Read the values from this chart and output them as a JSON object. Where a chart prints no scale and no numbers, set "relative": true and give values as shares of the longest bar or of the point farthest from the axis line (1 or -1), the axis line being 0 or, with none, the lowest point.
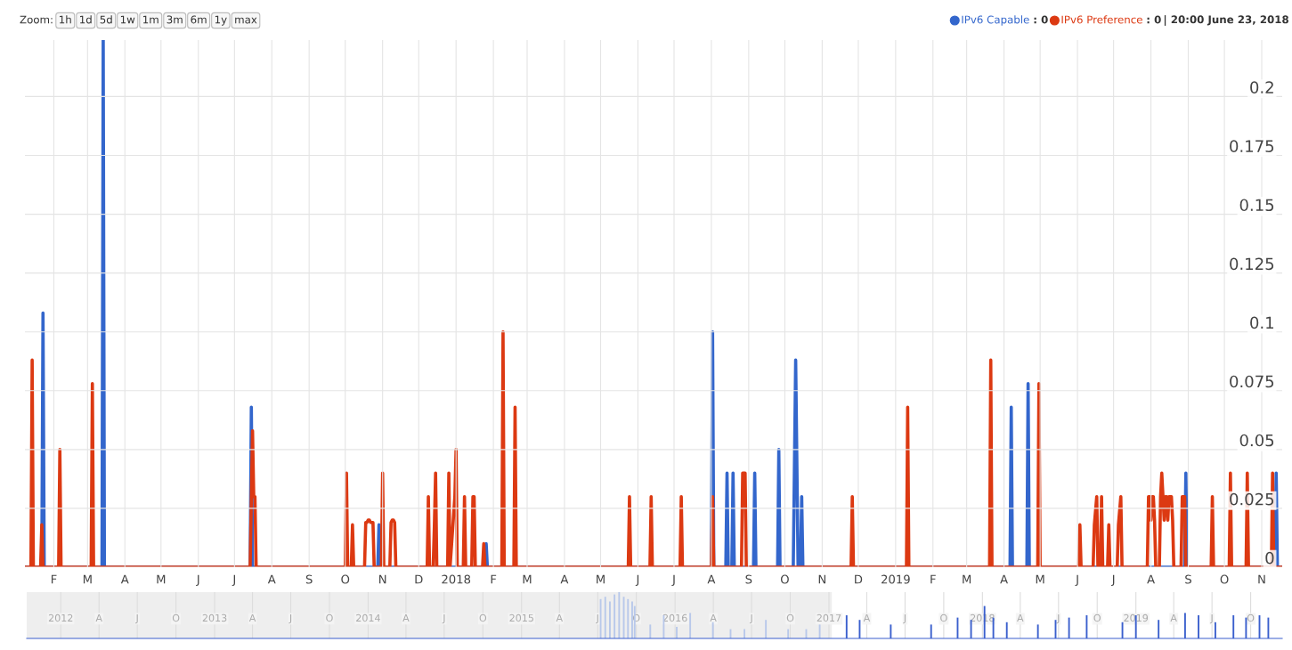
{
  "chart_data": [
    {
      "type": "line",
      "xlim": [
        "2017-01-08",
        "2019-11-18"
      ],
      "ylim": [
        0,
        0.224
      ],
      "yticks": [
        0,
        0.025,
        0.05,
        0.075,
        0.1,
        0.125,
        0.15,
        0.175,
        0.2
      ],
      "grid": true,
      "legend": "top right",
      "marker": "none",
      "line_style": "solid",
      "xticks": [
        {
          "value": "2017-02-01",
          "label": "F"
        },
        {
          "value": "2017-03-01",
          "label": "M"
        },
        {
          "value": "2017-04-01",
          "label": "A"
        },
        {
          "value": "2017-05-01",
          "label": "M"
        },
        {
          "value": "2017-06-01",
          "label": "J"
        },
        {
          "value": "2017-07-01",
          "label": "J"
        },
        {
          "value": "2017-08-01",
          "label": "A"
        },
        {
          "value": "2017-09-01",
          "label": "S"
        },
        {
          "value": "2017-10-01",
          "label": "O"
        },
        {
          "value": "2017-11-01",
          "label": "N"
        },
        {
          "value": "2017-12-01",
          "label": "D"
        },
        {
          "value": "2018-01-01",
          "label": "2018"
        },
        {
          "value": "2018-02-01",
          "label": "F"
        },
        {
          "value": "2018-03-01",
          "label": "M"
        },
        {
          "value": "2018-04-01",
          "label": "A"
        },
        {
          "value": "2018-05-01",
          "label": "M"
        },
        {
          "value": "2018-06-01",
          "label": "J"
        },
        {
          "value": "2018-07-01",
          "label": "J"
        },
        {
          "value": "2018-08-01",
          "label": "A"
        },
        {
          "value": "2018-09-01",
          "label": "S"
        },
        {
          "value": "2018-10-01",
          "label": "O"
        },
        {
          "value": "2018-11-01",
          "label": "N"
        },
        {
          "value": "2018-12-01",
          "label": "D"
        },
        {
          "value": "2019-01-01",
          "label": "2019"
        },
        {
          "value": "2019-02-01",
          "label": "F"
        },
        {
          "value": "2019-03-01",
          "label": "M"
        },
        {
          "value": "2019-04-01",
          "label": "A"
        },
        {
          "value": "2019-05-01",
          "label": "M"
        },
        {
          "value": "2019-06-01",
          "label": "J"
        },
        {
          "value": "2019-07-01",
          "label": "J"
        },
        {
          "value": "2019-08-01",
          "label": "A"
        },
        {
          "value": "2019-09-01",
          "label": "S"
        },
        {
          "value": "2019-10-01",
          "label": "O"
        },
        {
          "value": "2019-11-01",
          "label": "N"
        }
      ],
      "annotations": [
        "Zoom:",
        "1h",
        "1d",
        "5d",
        "1w",
        "1m",
        "3m",
        "6m",
        "1y",
        "max",
        ": 0",
        ": 0",
        "| 20:00 June 23, 2018"
      ],
      "series": [
        {
          "name": "IPv6 Capable",
          "color": "#3366cc",
          "x": [
            "2017-01-08",
            "2017-01-22",
            "2017-01-23",
            "2017-01-24",
            "2017-03-13",
            "2017-03-14",
            "2017-03-15",
            "2017-07-14",
            "2017-07-15",
            "2017-07-16",
            "2017-10-28",
            "2017-10-29",
            "2017-10-30",
            "2018-01-25",
            "2018-01-26",
            "2018-01-27",
            "2018-08-01",
            "2018-08-02",
            "2018-08-03",
            "2018-08-13",
            "2018-08-14",
            "2018-08-15",
            "2018-08-18",
            "2018-08-19",
            "2018-08-20",
            "2018-09-05",
            "2018-09-06",
            "2018-09-07",
            "2018-09-25",
            "2018-09-26",
            "2018-09-27",
            "2018-10-08",
            "2018-10-10",
            "2018-10-12",
            "2018-10-14",
            "2018-10-15",
            "2018-10-16",
            "2019-04-06",
            "2019-04-07",
            "2019-04-08",
            "2019-04-20",
            "2019-04-21",
            "2019-04-22",
            "2019-08-29",
            "2019-08-30",
            "2019-08-31",
            "2019-11-12",
            "2019-11-13",
            "2019-11-14",
            "2019-11-18"
          ],
          "values": [
            0,
            0,
            0.108,
            0,
            0,
            0.224,
            0,
            0,
            0.068,
            0,
            0,
            0.018,
            0,
            0,
            0.01,
            0,
            0,
            0.1,
            0,
            0,
            0.04,
            0,
            0,
            0.04,
            0,
            0,
            0.04,
            0,
            0,
            0.05,
            0,
            0,
            0.088,
            0,
            0,
            0.03,
            0,
            0,
            0.068,
            0,
            0,
            0.078,
            0,
            0,
            0.04,
            0,
            0,
            0.04,
            0,
            0
          ]
        },
        {
          "name": "IPv6 Preference",
          "color": "#dc3912",
          "x": [
            "2017-01-08",
            "2017-01-13",
            "2017-01-14",
            "2017-01-15",
            "2017-01-21",
            "2017-01-22",
            "2017-01-23",
            "2017-02-05",
            "2017-02-06",
            "2017-02-07",
            "2017-03-04",
            "2017-03-05",
            "2017-03-06",
            "2017-07-14",
            "2017-07-16",
            "2017-07-17",
            "2017-07-18",
            "2017-07-19",
            "2017-10-01",
            "2017-10-02",
            "2017-10-03",
            "2017-10-06",
            "2017-10-07",
            "2017-10-08",
            "2017-10-17",
            "2017-10-18",
            "2017-10-19",
            "2017-10-20",
            "2017-10-21",
            "2017-10-22",
            "2017-10-23",
            "2017-10-24",
            "2017-10-25",
            "2017-10-31",
            "2017-11-01",
            "2017-11-02",
            "2017-11-07",
            "2017-11-08",
            "2017-11-09",
            "2017-11-10",
            "2017-11-11",
            "2017-11-12",
            "2017-12-08",
            "2017-12-09",
            "2017-12-10",
            "2017-12-13",
            "2017-12-14",
            "2017-12-15",
            "2017-12-16",
            "2017-12-25",
            "2017-12-26",
            "2017-12-27",
            "2017-12-31",
            "2018-01-01",
            "2018-01-02",
            "2018-01-07",
            "2018-01-08",
            "2018-01-09",
            "2018-01-14",
            "2018-01-15",
            "2018-01-16",
            "2018-01-17",
            "2018-01-23",
            "2018-01-24",
            "2018-01-25",
            "2018-02-08",
            "2018-02-09",
            "2018-02-10",
            "2018-02-18",
            "2018-02-19",
            "2018-02-20",
            "2018-05-24",
            "2018-05-25",
            "2018-05-26",
            "2018-06-11",
            "2018-06-12",
            "2018-06-13",
            "2018-07-06",
            "2018-07-07",
            "2018-07-08",
            "2018-08-01",
            "2018-08-02",
            "2018-08-03",
            "2018-08-26",
            "2018-08-27",
            "2018-08-28",
            "2018-08-29",
            "2018-08-30",
            "2018-11-25",
            "2018-11-26",
            "2018-11-27",
            "2019-01-10",
            "2019-01-11",
            "2019-01-12",
            "2019-03-20",
            "2019-03-21",
            "2019-03-22",
            "2019-04-29",
            "2019-04-30",
            "2019-05-01",
            "2019-06-02",
            "2019-06-03",
            "2019-06-04",
            "2019-06-14",
            "2019-06-15",
            "2019-06-17",
            "2019-06-18",
            "2019-06-20",
            "2019-06-21",
            "2019-06-22",
            "2019-06-26",
            "2019-06-27",
            "2019-06-28",
            "2019-07-04",
            "2019-07-05",
            "2019-07-07",
            "2019-07-08",
            "2019-07-29",
            "2019-07-30",
            "2019-07-31",
            "2019-08-01",
            "2019-08-02",
            "2019-08-03",
            "2019-08-04",
            "2019-08-05",
            "2019-08-08",
            "2019-08-09",
            "2019-08-10",
            "2019-08-11",
            "2019-08-12",
            "2019-08-13",
            "2019-08-14",
            "2019-08-15",
            "2019-08-16",
            "2019-08-17",
            "2019-08-18",
            "2019-08-19",
            "2019-08-20",
            "2019-08-26",
            "2019-08-27",
            "2019-08-28",
            "2019-08-29",
            "2019-08-30",
            "2019-09-20",
            "2019-09-21",
            "2019-09-22",
            "2019-10-05",
            "2019-10-06",
            "2019-10-07",
            "2019-10-19",
            "2019-10-20",
            "2019-10-21",
            "2019-11-09",
            "2019-11-10",
            "2019-11-11",
            "2019-11-18"
          ],
          "values": [
            0,
            0,
            0.088,
            0,
            0,
            0.018,
            0,
            0,
            0.05,
            0,
            0,
            0.078,
            0,
            0,
            0.058,
            0.03,
            0.03,
            0,
            0,
            0.04,
            0,
            0,
            0.018,
            0,
            0,
            0.019,
            0.019,
            0.02,
            0.02,
            0.019,
            0.019,
            0.019,
            0,
            0,
            0.04,
            0,
            0,
            0.019,
            0.02,
            0.02,
            0.019,
            0,
            0,
            0.03,
            0,
            0,
            0.018,
            0.04,
            0,
            0,
            0.04,
            0,
            0.03,
            0.05,
            0,
            0,
            0.03,
            0,
            0,
            0.03,
            0.03,
            0,
            0,
            0.01,
            0,
            0,
            0.1,
            0,
            0,
            0.068,
            0,
            0,
            0.03,
            0,
            0,
            0.03,
            0,
            0,
            0.03,
            0,
            0,
            0.03,
            0,
            0,
            0.04,
            0.04,
            0.04,
            0,
            0,
            0.03,
            0,
            0,
            0.068,
            0,
            0,
            0.088,
            0,
            0,
            0.078,
            0,
            0,
            0.018,
            0,
            0,
            0.018,
            0.03,
            0,
            0,
            0.03,
            0,
            0,
            0.018,
            0,
            0,
            0.018,
            0.03,
            0,
            0,
            0.03,
            0.03,
            0.02,
            0.03,
            0.03,
            0.02,
            0,
            0,
            0.03,
            0.04,
            0.03,
            0.02,
            0.03,
            0.03,
            0.02,
            0.03,
            0.03,
            0.03,
            0.02,
            0,
            0,
            0.03,
            0.03,
            0.03,
            0,
            0,
            0.03,
            0,
            0,
            0.04,
            0,
            0,
            0.04,
            0,
            0,
            0.04,
            0,
            0
          ]
        }
      ]
    },
    {
      "type": "bar",
      "relative": true,
      "xlim": [
        "2011-10-12",
        "2019-12-15"
      ],
      "grid": "x",
      "bands": [
        {
          "axis": "x",
          "from": "2011-10-12",
          "to": "2017-01-08",
          "color": "#eeeeee"
        }
      ],
      "xticks": [
        {
          "value": "2012-01-01",
          "label": "2012"
        },
        {
          "value": "2012-04-01",
          "label": "A"
        },
        {
          "value": "2012-07-01",
          "label": "J"
        },
        {
          "value": "2012-10-01",
          "label": "O"
        },
        {
          "value": "2013-01-01",
          "label": "2013"
        },
        {
          "value": "2013-04-01",
          "label": "A"
        },
        {
          "value": "2013-07-01",
          "label": "J"
        },
        {
          "value": "2013-10-01",
          "label": "O"
        },
        {
          "value": "2014-01-01",
          "label": "2014"
        },
        {
          "value": "2014-04-01",
          "label": "A"
        },
        {
          "value": "2014-07-01",
          "label": "J"
        },
        {
          "value": "2014-10-01",
          "label": "O"
        },
        {
          "value": "2015-01-01",
          "label": "2015"
        },
        {
          "value": "2015-04-01",
          "label": "A"
        },
        {
          "value": "2015-07-01",
          "label": "J"
        },
        {
          "value": "2015-10-01",
          "label": "O"
        },
        {
          "value": "2016-01-01",
          "label": "2016"
        },
        {
          "value": "2016-04-01",
          "label": "A"
        },
        {
          "value": "2016-07-01",
          "label": "J"
        },
        {
          "value": "2016-10-01",
          "label": "O"
        },
        {
          "value": "2017-01-01",
          "label": "2017"
        },
        {
          "value": "2017-04-01",
          "label": "A"
        },
        {
          "value": "2017-07-01",
          "label": "J"
        },
        {
          "value": "2017-10-01",
          "label": "O"
        },
        {
          "value": "2018-01-01",
          "label": "2018"
        },
        {
          "value": "2018-04-01",
          "label": "A"
        },
        {
          "value": "2018-07-01",
          "label": "J"
        },
        {
          "value": "2018-10-01",
          "label": "O"
        },
        {
          "value": "2019-01-01",
          "label": "2019"
        },
        {
          "value": "2019-04-01",
          "label": "A"
        },
        {
          "value": "2019-07-01",
          "label": "J"
        },
        {
          "value": "2019-10-01",
          "label": "O"
        }
      ],
      "x": [
        "2015-07-08",
        "2015-07-19",
        "2015-07-30",
        "2015-08-10",
        "2015-08-21",
        "2015-09-01",
        "2015-09-11",
        "2015-09-21",
        "2015-09-27",
        "2015-11-03",
        "2015-12-05",
        "2016-01-05",
        "2016-02-06",
        "2016-03-31",
        "2016-05-12",
        "2016-06-14",
        "2016-08-04",
        "2016-09-26",
        "2016-11-08",
        "2016-12-10",
        "2017-02-12",
        "2017-03-15",
        "2017-05-28",
        "2017-09-01",
        "2017-11-03",
        "2017-12-05",
        "2018-01-06",
        "2018-01-27",
        "2018-02-28",
        "2018-05-13",
        "2018-06-24",
        "2018-07-26",
        "2018-09-06",
        "2018-11-30",
        "2019-01-01",
        "2019-02-24",
        "2019-04-28",
        "2019-05-30",
        "2019-07-09",
        "2019-08-21",
        "2019-09-20",
        "2019-10-22",
        "2019-11-12"
      ],
      "values": [
        0.85,
        0.9,
        0.8,
        0.95,
        1,
        0.9,
        0.85,
        0.8,
        0.7,
        0.3,
        0.5,
        0.25,
        0.55,
        0.35,
        0.2,
        0.2,
        0.4,
        0.2,
        0.2,
        0.3,
        0.5,
        0.4,
        0.3,
        0.3,
        0.45,
        0.4,
        0.7,
        0.45,
        0.35,
        0.3,
        0.4,
        0.45,
        0.5,
        0.35,
        0.5,
        0.4,
        0.55,
        0.5,
        0.35,
        0.5,
        0.45,
        0.5,
        0.45
      ],
      "colors": [
        "#b8c8ea",
        "#b8c8ea",
        "#b8c8ea",
        "#b8c8ea",
        "#b8c8ea",
        "#b8c8ea",
        "#b8c8ea",
        "#b8c8ea",
        "#b8c8ea",
        "#b8c8ea",
        "#b8c8ea",
        "#b8c8ea",
        "#b8c8ea",
        "#b8c8ea",
        "#b8c8ea",
        "#b8c8ea",
        "#b8c8ea",
        "#b8c8ea",
        "#b8c8ea",
        "#b8c8ea",
        "#3a5fcd",
        "#3a5fcd",
        "#3a5fcd",
        "#3a5fcd",
        "#3a5fcd",
        "#3a5fcd",
        "#3a5fcd",
        "#3a5fcd",
        "#3a5fcd",
        "#3a5fcd",
        "#3a5fcd",
        "#3a5fcd",
        "#3a5fcd",
        "#3a5fcd",
        "#3a5fcd",
        "#3a5fcd",
        "#3a5fcd",
        "#3a5fcd",
        "#3a5fcd",
        "#3a5fcd",
        "#3a5fcd",
        "#3a5fcd",
        "#3a5fcd"
      ]
    }
  ]
}
